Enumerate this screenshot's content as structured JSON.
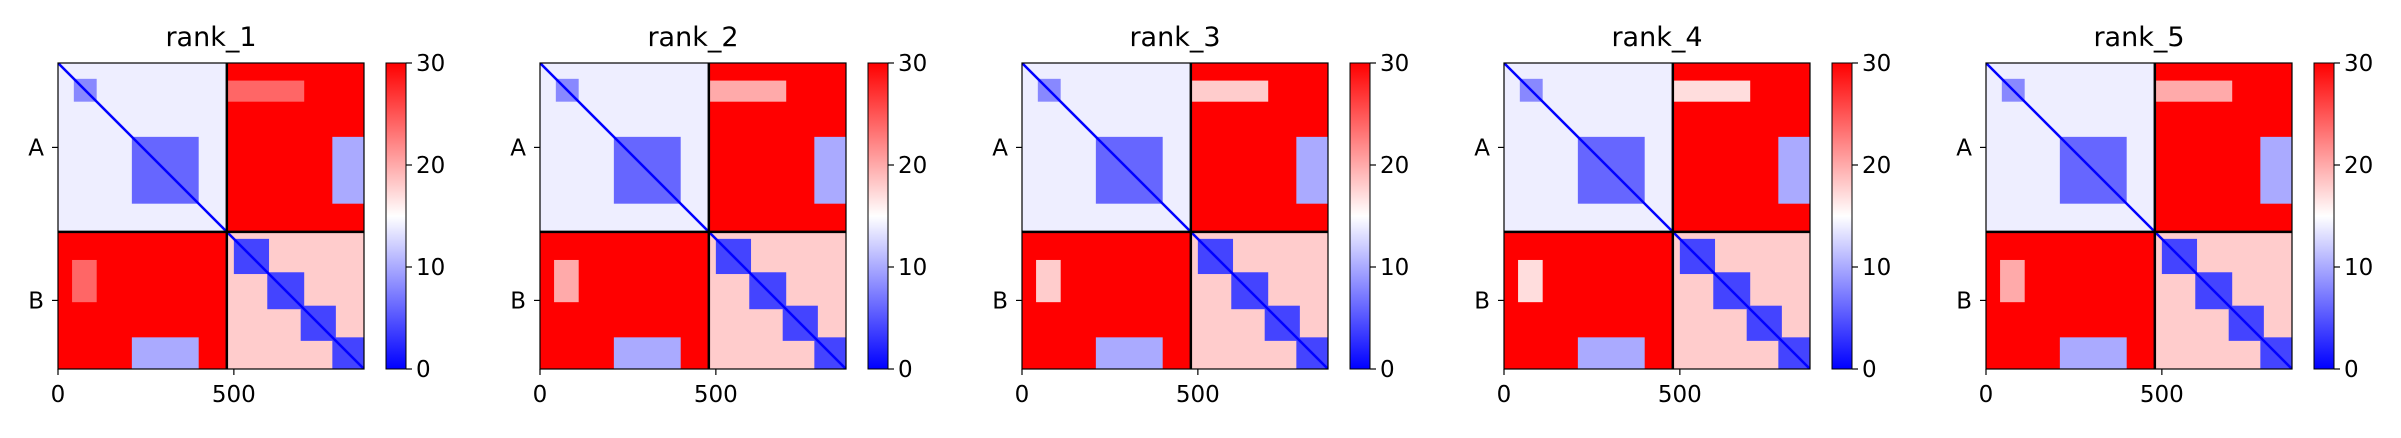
{
  "chart_data": {
    "type": "heatmap",
    "colormap": "bwr",
    "colorbar": {
      "vmin": 0,
      "vmax": 30,
      "ticks": [
        0,
        10,
        20,
        30
      ],
      "tick_labels": [
        "0",
        "10",
        "20",
        "30"
      ],
      "colors": [
        "#0000ff",
        "#ffffff",
        "#ff0000"
      ]
    },
    "sequence_length": 870,
    "chain_boundary": 480,
    "chains": [
      {
        "label": "A",
        "start": 0,
        "end": 480
      },
      {
        "label": "B",
        "start": 480,
        "end": 870
      }
    ],
    "x_axis": {
      "range": [
        0,
        870
      ],
      "ticks": [
        0,
        500
      ],
      "tick_labels": [
        "0",
        "500"
      ]
    },
    "y_axis": {
      "tick_labels": [
        "A",
        "B"
      ]
    },
    "grid": false,
    "panels": [
      {
        "title": "rank_1",
        "low_error_blocks": [
          {
            "x": [
              0,
              480
            ],
            "y": [
              0,
              480
            ],
            "value": 14
          },
          {
            "x": [
              210,
              400
            ],
            "y": [
              210,
              400
            ],
            "value": 6
          },
          {
            "x": [
              45,
              110
            ],
            "y": [
              45,
              110
            ],
            "value": 8
          },
          {
            "x": [
              480,
              870
            ],
            "y": [
              480,
              870
            ],
            "value": 18
          },
          {
            "x": [
              500,
              600
            ],
            "y": [
              500,
              600
            ],
            "value": 4
          },
          {
            "x": [
              595,
              700
            ],
            "y": [
              595,
              700
            ],
            "value": 4
          },
          {
            "x": [
              690,
              790
            ],
            "y": [
              690,
              790
            ],
            "value": 4
          },
          {
            "x": [
              780,
              870
            ],
            "y": [
              780,
              870
            ],
            "value": 4
          },
          {
            "x": [
              780,
              870
            ],
            "y": [
              210,
              400
            ],
            "value": 10
          },
          {
            "x": [
              210,
              400
            ],
            "y": [
              780,
              870
            ],
            "value": 10
          },
          {
            "x": [
              480,
              700
            ],
            "y": [
              50,
              110
            ],
            "value": 24
          },
          {
            "x": [
              40,
              110
            ],
            "y": [
              560,
              680
            ],
            "value": 24
          }
        ]
      },
      {
        "title": "rank_2",
        "low_error_blocks": [
          {
            "x": [
              0,
              480
            ],
            "y": [
              0,
              480
            ],
            "value": 14
          },
          {
            "x": [
              210,
              400
            ],
            "y": [
              210,
              400
            ],
            "value": 6
          },
          {
            "x": [
              45,
              110
            ],
            "y": [
              45,
              110
            ],
            "value": 8
          },
          {
            "x": [
              480,
              870
            ],
            "y": [
              480,
              870
            ],
            "value": 18
          },
          {
            "x": [
              500,
              600
            ],
            "y": [
              500,
              600
            ],
            "value": 4
          },
          {
            "x": [
              595,
              700
            ],
            "y": [
              595,
              700
            ],
            "value": 4
          },
          {
            "x": [
              690,
              790
            ],
            "y": [
              690,
              790
            ],
            "value": 4
          },
          {
            "x": [
              780,
              870
            ],
            "y": [
              780,
              870
            ],
            "value": 4
          },
          {
            "x": [
              780,
              870
            ],
            "y": [
              210,
              400
            ],
            "value": 10
          },
          {
            "x": [
              210,
              400
            ],
            "y": [
              780,
              870
            ],
            "value": 10
          },
          {
            "x": [
              480,
              700
            ],
            "y": [
              50,
              110
            ],
            "value": 20
          },
          {
            "x": [
              40,
              110
            ],
            "y": [
              560,
              680
            ],
            "value": 20
          }
        ]
      },
      {
        "title": "rank_3",
        "low_error_blocks": [
          {
            "x": [
              0,
              480
            ],
            "y": [
              0,
              480
            ],
            "value": 14
          },
          {
            "x": [
              210,
              400
            ],
            "y": [
              210,
              400
            ],
            "value": 6
          },
          {
            "x": [
              45,
              110
            ],
            "y": [
              45,
              110
            ],
            "value": 8
          },
          {
            "x": [
              480,
              870
            ],
            "y": [
              480,
              870
            ],
            "value": 18
          },
          {
            "x": [
              500,
              600
            ],
            "y": [
              500,
              600
            ],
            "value": 4
          },
          {
            "x": [
              595,
              700
            ],
            "y": [
              595,
              700
            ],
            "value": 4
          },
          {
            "x": [
              690,
              790
            ],
            "y": [
              690,
              790
            ],
            "value": 4
          },
          {
            "x": [
              780,
              870
            ],
            "y": [
              780,
              870
            ],
            "value": 4
          },
          {
            "x": [
              780,
              870
            ],
            "y": [
              210,
              400
            ],
            "value": 10
          },
          {
            "x": [
              210,
              400
            ],
            "y": [
              780,
              870
            ],
            "value": 10
          },
          {
            "x": [
              480,
              700
            ],
            "y": [
              50,
              110
            ],
            "value": 18
          },
          {
            "x": [
              40,
              110
            ],
            "y": [
              560,
              680
            ],
            "value": 18
          }
        ]
      },
      {
        "title": "rank_4",
        "low_error_blocks": [
          {
            "x": [
              0,
              480
            ],
            "y": [
              0,
              480
            ],
            "value": 14
          },
          {
            "x": [
              210,
              400
            ],
            "y": [
              210,
              400
            ],
            "value": 6
          },
          {
            "x": [
              45,
              110
            ],
            "y": [
              45,
              110
            ],
            "value": 8
          },
          {
            "x": [
              480,
              870
            ],
            "y": [
              480,
              870
            ],
            "value": 18
          },
          {
            "x": [
              500,
              600
            ],
            "y": [
              500,
              600
            ],
            "value": 4
          },
          {
            "x": [
              595,
              700
            ],
            "y": [
              595,
              700
            ],
            "value": 4
          },
          {
            "x": [
              690,
              790
            ],
            "y": [
              690,
              790
            ],
            "value": 4
          },
          {
            "x": [
              780,
              870
            ],
            "y": [
              780,
              870
            ],
            "value": 4
          },
          {
            "x": [
              780,
              870
            ],
            "y": [
              210,
              400
            ],
            "value": 10
          },
          {
            "x": [
              210,
              400
            ],
            "y": [
              780,
              870
            ],
            "value": 10
          },
          {
            "x": [
              480,
              700
            ],
            "y": [
              50,
              110
            ],
            "value": 17
          },
          {
            "x": [
              40,
              110
            ],
            "y": [
              560,
              680
            ],
            "value": 17
          }
        ]
      },
      {
        "title": "rank_5",
        "low_error_blocks": [
          {
            "x": [
              0,
              480
            ],
            "y": [
              0,
              480
            ],
            "value": 14
          },
          {
            "x": [
              210,
              400
            ],
            "y": [
              210,
              400
            ],
            "value": 6
          },
          {
            "x": [
              45,
              110
            ],
            "y": [
              45,
              110
            ],
            "value": 8
          },
          {
            "x": [
              480,
              870
            ],
            "y": [
              480,
              870
            ],
            "value": 18
          },
          {
            "x": [
              500,
              600
            ],
            "y": [
              500,
              600
            ],
            "value": 4
          },
          {
            "x": [
              595,
              700
            ],
            "y": [
              595,
              700
            ],
            "value": 4
          },
          {
            "x": [
              690,
              790
            ],
            "y": [
              690,
              790
            ],
            "value": 4
          },
          {
            "x": [
              780,
              870
            ],
            "y": [
              780,
              870
            ],
            "value": 4
          },
          {
            "x": [
              780,
              870
            ],
            "y": [
              210,
              400
            ],
            "value": 10
          },
          {
            "x": [
              210,
              400
            ],
            "y": [
              780,
              870
            ],
            "value": 10
          },
          {
            "x": [
              480,
              700
            ],
            "y": [
              50,
              110
            ],
            "value": 20
          },
          {
            "x": [
              40,
              110
            ],
            "y": [
              560,
              680
            ],
            "value": 20
          }
        ]
      }
    ]
  }
}
